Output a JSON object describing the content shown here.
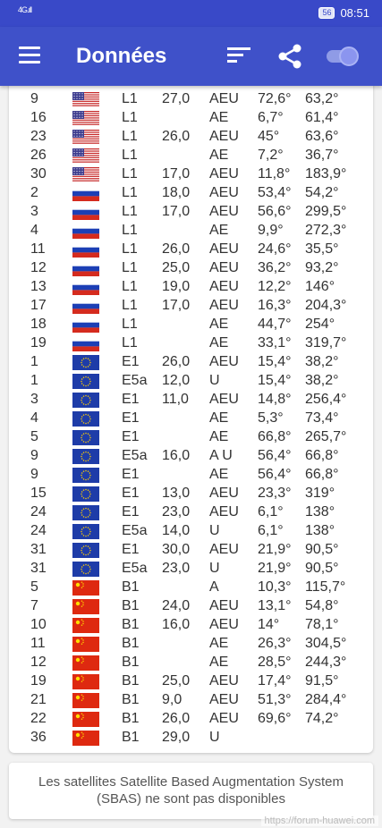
{
  "status_bar": {
    "signal": "4G.ıll",
    "battery": "56",
    "time": "08:51"
  },
  "app_bar": {
    "title": "Données",
    "icons": [
      "menu-icon",
      "sort-icon",
      "share-icon",
      "toggle-switch"
    ]
  },
  "satellites": [
    {
      "prn": "9",
      "flag": "us",
      "band": "L1",
      "cn0": "27,0",
      "flags": "AEU",
      "elev": "72,6°",
      "azim": "63,2°"
    },
    {
      "prn": "16",
      "flag": "us",
      "band": "L1",
      "cn0": "",
      "flags": "AE",
      "elev": "6,7°",
      "azim": "61,4°"
    },
    {
      "prn": "23",
      "flag": "us",
      "band": "L1",
      "cn0": "26,0",
      "flags": "AEU",
      "elev": "45°",
      "azim": "63,6°"
    },
    {
      "prn": "26",
      "flag": "us",
      "band": "L1",
      "cn0": "",
      "flags": "AE",
      "elev": "7,2°",
      "azim": "36,7°"
    },
    {
      "prn": "30",
      "flag": "us",
      "band": "L1",
      "cn0": "17,0",
      "flags": "AEU",
      "elev": "11,8°",
      "azim": "183,9°"
    },
    {
      "prn": "2",
      "flag": "ru",
      "band": "L1",
      "cn0": "18,0",
      "flags": "AEU",
      "elev": "53,4°",
      "azim": "54,2°"
    },
    {
      "prn": "3",
      "flag": "ru",
      "band": "L1",
      "cn0": "17,0",
      "flags": "AEU",
      "elev": "56,6°",
      "azim": "299,5°"
    },
    {
      "prn": "4",
      "flag": "ru",
      "band": "L1",
      "cn0": "",
      "flags": "AE",
      "elev": "9,9°",
      "azim": "272,3°"
    },
    {
      "prn": "11",
      "flag": "ru",
      "band": "L1",
      "cn0": "26,0",
      "flags": "AEU",
      "elev": "24,6°",
      "azim": "35,5°"
    },
    {
      "prn": "12",
      "flag": "ru",
      "band": "L1",
      "cn0": "25,0",
      "flags": "AEU",
      "elev": "36,2°",
      "azim": "93,2°"
    },
    {
      "prn": "13",
      "flag": "ru",
      "band": "L1",
      "cn0": "19,0",
      "flags": "AEU",
      "elev": "12,2°",
      "azim": "146°"
    },
    {
      "prn": "17",
      "flag": "ru",
      "band": "L1",
      "cn0": "17,0",
      "flags": "AEU",
      "elev": "16,3°",
      "azim": "204,3°"
    },
    {
      "prn": "18",
      "flag": "ru",
      "band": "L1",
      "cn0": "",
      "flags": "AE",
      "elev": "44,7°",
      "azim": "254°"
    },
    {
      "prn": "19",
      "flag": "ru",
      "band": "L1",
      "cn0": "",
      "flags": "AE",
      "elev": "33,1°",
      "azim": "319,7°"
    },
    {
      "prn": "1",
      "flag": "eu",
      "band": "E1",
      "cn0": "26,0",
      "flags": "AEU",
      "elev": "15,4°",
      "azim": "38,2°"
    },
    {
      "prn": "1",
      "flag": "eu",
      "band": "E5a",
      "cn0": "12,0",
      "flags": "U",
      "elev": "15,4°",
      "azim": "38,2°"
    },
    {
      "prn": "3",
      "flag": "eu",
      "band": "E1",
      "cn0": "11,0",
      "flags": "AEU",
      "elev": "14,8°",
      "azim": "256,4°"
    },
    {
      "prn": "4",
      "flag": "eu",
      "band": "E1",
      "cn0": "",
      "flags": "AE",
      "elev": "5,3°",
      "azim": "73,4°"
    },
    {
      "prn": "5",
      "flag": "eu",
      "band": "E1",
      "cn0": "",
      "flags": "AE",
      "elev": "66,8°",
      "azim": "265,7°"
    },
    {
      "prn": "9",
      "flag": "eu",
      "band": "E5a",
      "cn0": "16,0",
      "flags": "A U",
      "elev": "56,4°",
      "azim": "66,8°"
    },
    {
      "prn": "9",
      "flag": "eu",
      "band": "E1",
      "cn0": "",
      "flags": "AE",
      "elev": "56,4°",
      "azim": "66,8°"
    },
    {
      "prn": "15",
      "flag": "eu",
      "band": "E1",
      "cn0": "13,0",
      "flags": "AEU",
      "elev": "23,3°",
      "azim": "319°"
    },
    {
      "prn": "24",
      "flag": "eu",
      "band": "E1",
      "cn0": "23,0",
      "flags": "AEU",
      "elev": "6,1°",
      "azim": "138°"
    },
    {
      "prn": "24",
      "flag": "eu",
      "band": "E5a",
      "cn0": "14,0",
      "flags": "U",
      "elev": "6,1°",
      "azim": "138°"
    },
    {
      "prn": "31",
      "flag": "eu",
      "band": "E1",
      "cn0": "30,0",
      "flags": "AEU",
      "elev": "21,9°",
      "azim": "90,5°"
    },
    {
      "prn": "31",
      "flag": "eu",
      "band": "E5a",
      "cn0": "23,0",
      "flags": "U",
      "elev": "21,9°",
      "azim": "90,5°"
    },
    {
      "prn": "5",
      "flag": "cn",
      "band": "B1",
      "cn0": "",
      "flags": "A",
      "elev": "10,3°",
      "azim": "115,7°"
    },
    {
      "prn": "7",
      "flag": "cn",
      "band": "B1",
      "cn0": "24,0",
      "flags": "AEU",
      "elev": "13,1°",
      "azim": "54,8°"
    },
    {
      "prn": "10",
      "flag": "cn",
      "band": "B1",
      "cn0": "16,0",
      "flags": "AEU",
      "elev": "14°",
      "azim": "78,1°"
    },
    {
      "prn": "11",
      "flag": "cn",
      "band": "B1",
      "cn0": "",
      "flags": "AE",
      "elev": "26,3°",
      "azim": "304,5°"
    },
    {
      "prn": "12",
      "flag": "cn",
      "band": "B1",
      "cn0": "",
      "flags": "AE",
      "elev": "28,5°",
      "azim": "244,3°"
    },
    {
      "prn": "19",
      "flag": "cn",
      "band": "B1",
      "cn0": "25,0",
      "flags": "AEU",
      "elev": "17,4°",
      "azim": "91,5°"
    },
    {
      "prn": "21",
      "flag": "cn",
      "band": "B1",
      "cn0": "9,0",
      "flags": "AEU",
      "elev": "51,3°",
      "azim": "284,4°"
    },
    {
      "prn": "22",
      "flag": "cn",
      "band": "B1",
      "cn0": "26,0",
      "flags": "AEU",
      "elev": "69,6°",
      "azim": "74,2°"
    },
    {
      "prn": "36",
      "flag": "cn",
      "band": "B1",
      "cn0": "29,0",
      "flags": "U",
      "elev": "",
      "azim": ""
    }
  ],
  "footer": {
    "message": "Les satellites Satellite Based Augmentation System (SBAS) ne sont pas disponibles"
  },
  "watermark": "https://forum-huawei.com",
  "colors": {
    "primary": "#3f51c9",
    "status_bar": "#3949c8",
    "card": "#ffffff",
    "background": "#f2f2f2"
  }
}
